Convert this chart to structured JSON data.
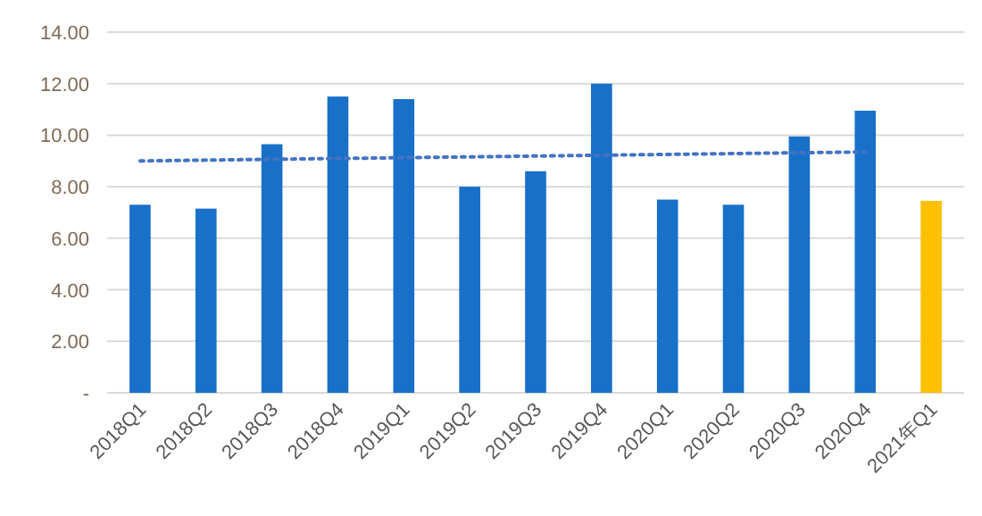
{
  "chart_data": {
    "type": "bar",
    "categories": [
      "2018Q1",
      "2018Q2",
      "2018Q3",
      "2018Q4",
      "2019Q1",
      "2019Q2",
      "2019Q3",
      "2019Q4",
      "2020Q1",
      "2020Q2",
      "2020Q3",
      "2020Q4",
      "2021年Q1"
    ],
    "series": [
      {
        "colors": [
          "#1870c9",
          "#1870c9",
          "#1870c9",
          "#1870c9",
          "#1870c9",
          "#1870c9",
          "#1870c9",
          "#1870c9",
          "#1870c9",
          "#1870c9",
          "#1870c9",
          "#1870c9",
          "#ffc000"
        ],
        "values": [
          7.3,
          7.15,
          9.65,
          11.5,
          11.4,
          8.0,
          8.6,
          12.0,
          7.5,
          7.3,
          9.95,
          10.95,
          7.45
        ]
      },
      {
        "type": "line",
        "color": "#4472c4",
        "line_style": "dotted",
        "x": [
          "2018Q1",
          "2020Q4"
        ],
        "values": [
          9.0,
          9.35
        ]
      }
    ],
    "ylim": [
      0,
      14
    ],
    "yticks": [
      {
        "value": 0,
        "label": "-"
      },
      {
        "value": 2,
        "label": "2.00"
      },
      {
        "value": 4,
        "label": "4.00"
      },
      {
        "value": 6,
        "label": "6.00"
      },
      {
        "value": 8,
        "label": "8.00"
      },
      {
        "value": 10,
        "label": "10.00"
      },
      {
        "value": 12,
        "label": "12.00"
      },
      {
        "value": 14,
        "label": "14.00"
      }
    ],
    "grid": "y"
  }
}
